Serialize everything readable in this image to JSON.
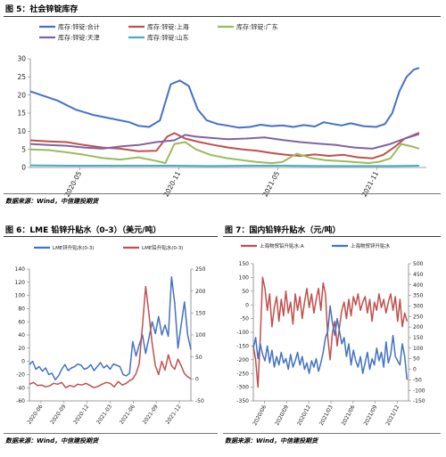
{
  "figures": {
    "fig5_title": "图 5：社会锌锭库存",
    "fig6_title": "图 6：LME 铅锌升贴水（0-3）（美元/吨）",
    "fig7_title": "图 7：国内铅锌升贴水（元/吨）",
    "source_text": "数据来源：Wind，中信建投期货"
  },
  "colors": {
    "blue": "#4472C4",
    "red": "#C0504D",
    "green": "#9BBB59",
    "purple": "#8064A2",
    "cyan": "#4BACC6",
    "axis": "#7f7f7f"
  },
  "chart_data": [
    {
      "id": "fig5",
      "type": "line",
      "title": "图 5：社会锌锭库存",
      "x_tick_labels": [
        "2020-05",
        "2020-11",
        "2021-05",
        "2021-11"
      ],
      "x_range": [
        0,
        22
      ],
      "ylim": [
        0,
        30
      ],
      "y_ticks": [
        0,
        5,
        10,
        15,
        20,
        25,
        30
      ],
      "legend_position": "top",
      "series": [
        {
          "name": "库存:锌锭:合计",
          "color": "#4472C4",
          "x": [
            0,
            0.6,
            1.5,
            2.5,
            3.5,
            4.5,
            5.5,
            6,
            6.6,
            7.2,
            7.8,
            8.3,
            8.8,
            9.3,
            9.8,
            10.4,
            11,
            11.6,
            12.2,
            12.8,
            13.4,
            14,
            14.6,
            15.2,
            15.8,
            16.3,
            16.8,
            17.3,
            17.8,
            18.5,
            19.2,
            19.7,
            20.1,
            20.5,
            20.9,
            21.3,
            21.6
          ],
          "values": [
            21,
            20,
            18.5,
            16,
            14.5,
            13.5,
            12.5,
            11.5,
            11.2,
            13,
            23,
            24,
            22.5,
            16,
            13,
            12,
            11.5,
            11,
            11.2,
            11.8,
            11.4,
            11.6,
            11.2,
            11.7,
            11.3,
            12.5,
            12,
            11.6,
            12.2,
            11.4,
            11.2,
            12,
            15,
            21,
            25,
            27,
            27.5
          ]
        },
        {
          "name": "库存:锌锭:上海",
          "color": "#C0504D",
          "x": [
            0,
            1,
            2,
            3,
            4,
            5,
            6,
            7,
            7.6,
            8,
            8.6,
            9.4,
            10.2,
            11,
            11.8,
            12.6,
            13.4,
            14.2,
            15,
            15.8,
            16.6,
            17.4,
            18.2,
            19,
            19.6,
            20.2,
            20.8,
            21.6
          ],
          "values": [
            7.5,
            7.2,
            7,
            6.2,
            5.5,
            5.2,
            4.5,
            4.6,
            8.5,
            9.5,
            8,
            7,
            6.2,
            5.5,
            5,
            4.6,
            4,
            3.5,
            3.2,
            3.6,
            3.2,
            3.5,
            2.8,
            2.5,
            3.5,
            5.5,
            8,
            9.6
          ]
        },
        {
          "name": "库存:锌锭:广东",
          "color": "#9BBB59",
          "x": [
            0,
            1,
            2,
            3,
            4,
            5,
            6,
            7,
            7.5,
            8,
            8.6,
            9.2,
            10,
            11,
            11.8,
            12.6,
            13.4,
            14,
            14.8,
            15.6,
            16.4,
            17.2,
            18,
            18.8,
            19.4,
            20,
            20.6,
            21.2,
            21.6
          ],
          "values": [
            5,
            4.8,
            4.2,
            3.5,
            2.6,
            2.2,
            2.8,
            1.8,
            1.2,
            6.5,
            7,
            5,
            3.5,
            2.5,
            2,
            1.5,
            1.2,
            1.5,
            3.8,
            2.6,
            2,
            1.8,
            1.5,
            1.2,
            1.6,
            2.5,
            6.5,
            5.8,
            5.2
          ]
        },
        {
          "name": "库存:锌锭:天津",
          "color": "#8064A2",
          "x": [
            0,
            1,
            2,
            3,
            4,
            5,
            6,
            7,
            8,
            8.6,
            9.2,
            10,
            11,
            12,
            13,
            14,
            15,
            16,
            17,
            18,
            19,
            20,
            20.8,
            21.6
          ],
          "values": [
            6.5,
            6.2,
            6,
            5.5,
            5.2,
            5.8,
            6.2,
            7,
            7.5,
            9,
            8.5,
            8.2,
            7.8,
            8,
            8.3,
            7.6,
            7,
            6.6,
            6.2,
            5.5,
            5.2,
            6.5,
            8,
            9.2
          ]
        },
        {
          "name": "库存:锌锭:山东",
          "color": "#4BACC6",
          "x": [
            0,
            2,
            4,
            6,
            8,
            10,
            12,
            14,
            16,
            18,
            20,
            21.6
          ],
          "values": [
            0.6,
            0.5,
            0.5,
            0.5,
            0.5,
            0.4,
            0.5,
            0.5,
            0.4,
            0.4,
            0.4,
            0.5
          ]
        }
      ]
    },
    {
      "id": "fig6",
      "type": "line",
      "title": "图 6：LME 铅锌升贴水（0-3）（美元/吨）",
      "x_tick_labels": [
        "2020-06",
        "2020-09",
        "2020-12",
        "2021-03",
        "2021-06",
        "2021-09",
        "2021-12"
      ],
      "x_range": [
        0,
        20
      ],
      "ylim_left": [
        -60,
        140
      ],
      "y_ticks_left": [
        -60,
        -40,
        -20,
        0,
        20,
        40,
        60,
        80,
        100,
        120,
        140
      ],
      "ylim_right": [
        -50,
        250
      ],
      "y_ticks_right": [
        -50,
        0,
        50,
        100,
        150,
        200,
        250
      ],
      "legend_position": "top",
      "series": [
        {
          "name": "LME锌升贴水(0-3)",
          "color": "#4472C4",
          "axis": "left",
          "x": [
            0,
            0.4,
            0.8,
            1.2,
            1.6,
            2,
            2.4,
            2.8,
            3.2,
            3.6,
            4,
            4.4,
            4.8,
            5.2,
            5.6,
            6,
            6.4,
            6.8,
            7.2,
            7.6,
            8,
            8.4,
            8.8,
            9.2,
            9.6,
            10,
            10.4,
            10.8,
            11.2,
            11.6,
            12,
            12.4,
            12.8,
            13.2,
            13.6,
            14,
            14.4,
            14.8,
            15.2,
            15.6,
            16,
            16.4,
            16.8,
            17.2,
            17.6,
            18,
            18.4,
            18.8,
            19.2,
            19.6,
            20
          ],
          "values": [
            -5,
            0,
            -12,
            -8,
            -15,
            -10,
            -20,
            -18,
            -28,
            -22,
            -12,
            -5,
            -14,
            -10,
            -8,
            -4,
            -6,
            -12,
            -10,
            -5,
            -14,
            -8,
            -2,
            -10,
            -6,
            -12,
            -4,
            -6,
            -8,
            -20,
            -22,
            -18,
            30,
            8,
            25,
            40,
            12,
            35,
            60,
            42,
            68,
            40,
            55,
            38,
            128,
            88,
            20,
            55,
            90,
            40,
            18
          ]
        },
        {
          "name": "LME铅升贴水(0-3)",
          "color": "#C0504D",
          "axis": "right",
          "x": [
            0,
            0.5,
            1,
            1.5,
            2,
            2.5,
            3,
            3.5,
            4,
            4.5,
            5,
            5.5,
            6,
            6.5,
            7,
            7.5,
            8,
            8.5,
            9,
            9.5,
            10,
            10.5,
            11,
            11.5,
            12,
            12.4,
            12.8,
            13.2,
            13.6,
            14,
            14.4,
            14.8,
            15.2,
            15.6,
            16,
            16.4,
            16.8,
            17.2,
            17.6,
            18,
            18.4,
            18.8,
            19.2,
            19.6,
            20
          ],
          "values": [
            -12,
            -8,
            -15,
            -14,
            -18,
            -16,
            -10,
            -12,
            -8,
            -20,
            -15,
            -18,
            -12,
            -14,
            -10,
            -15,
            -20,
            -17,
            -12,
            -8,
            -10,
            -18,
            -6,
            -14,
            -10,
            -4,
            0,
            12,
            35,
            120,
            210,
            150,
            80,
            30,
            10,
            40,
            20,
            55,
            30,
            22,
            45,
            30,
            12,
            5,
            0
          ]
        }
      ]
    },
    {
      "id": "fig7",
      "type": "line",
      "title": "图 7：国内铅锌升贴水（元/吨）",
      "x_tick_labels": [
        "2020/06",
        "2020/09",
        "2020/12",
        "2021/03",
        "2021/06",
        "2021/09",
        "2021/12"
      ],
      "x_range": [
        0,
        20
      ],
      "ylim_left": [
        -350,
        150
      ],
      "y_ticks_left": [
        -350,
        -300,
        -250,
        -200,
        -150,
        -100,
        -50,
        0,
        50,
        100,
        150
      ],
      "ylim_right": [
        -150,
        500
      ],
      "y_ticks_right": [
        -150,
        -100,
        -50,
        0,
        50,
        100,
        150,
        200,
        250,
        300,
        350,
        400,
        450,
        500
      ],
      "legend_position": "top",
      "series": [
        {
          "name": "上海物贸铅升贴水:A",
          "color": "#C0504D",
          "axis": "left",
          "x": [
            0,
            0.3,
            0.6,
            0.9,
            1.2,
            1.5,
            1.8,
            2.1,
            2.4,
            2.7,
            3,
            3.3,
            3.6,
            3.9,
            4.2,
            4.5,
            4.8,
            5.1,
            5.4,
            5.7,
            6,
            6.3,
            6.6,
            6.9,
            7.2,
            7.5,
            7.8,
            8.1,
            8.4,
            8.7,
            9,
            9.3,
            9.6,
            9.9,
            10.2,
            10.5,
            10.8,
            11.1,
            11.4,
            11.7,
            12,
            12.3,
            12.6,
            12.9,
            13.2,
            13.5,
            13.8,
            14.1,
            14.4,
            14.7,
            15,
            15.3,
            15.6,
            15.9,
            16.2,
            16.5,
            16.8,
            17.1,
            17.4,
            17.7,
            18,
            18.3,
            18.6,
            18.9,
            19.2,
            19.5,
            19.8
          ],
          "values": [
            -150,
            -200,
            -300,
            -120,
            100,
            60,
            -20,
            40,
            -80,
            -10,
            30,
            -60,
            20,
            -40,
            50,
            -30,
            10,
            -70,
            40,
            -20,
            30,
            -50,
            10,
            60,
            -10,
            40,
            -30,
            20,
            60,
            -20,
            80,
            40,
            -120,
            -200,
            -100,
            -60,
            -150,
            -80,
            -20,
            10,
            -50,
            20,
            -40,
            30,
            0,
            40,
            -20,
            10,
            30,
            -30,
            20,
            -60,
            10,
            -20,
            40,
            -10,
            20,
            -30,
            10,
            40,
            -20,
            30,
            -60,
            20,
            -80,
            -30,
            -60
          ]
        },
        {
          "name": "上海物贸锌升贴水",
          "color": "#4472C4",
          "axis": "right",
          "x": [
            0,
            0.3,
            0.6,
            0.9,
            1.2,
            1.5,
            1.8,
            2.1,
            2.4,
            2.7,
            3,
            3.3,
            3.6,
            3.9,
            4.2,
            4.5,
            4.8,
            5.1,
            5.4,
            5.7,
            6,
            6.3,
            6.6,
            6.9,
            7.2,
            7.5,
            7.8,
            8.1,
            8.4,
            8.7,
            9,
            9.3,
            9.6,
            9.9,
            10.2,
            10.5,
            10.8,
            11.1,
            11.4,
            11.7,
            12,
            12.3,
            12.6,
            12.9,
            13.2,
            13.5,
            13.8,
            14.1,
            14.4,
            14.7,
            15,
            15.3,
            15.6,
            15.9,
            16.2,
            16.5,
            16.8,
            17.1,
            17.4,
            17.7,
            18,
            18.3,
            18.6,
            18.9,
            19.2,
            19.5,
            19.8
          ],
          "values": [
            100,
            150,
            50,
            120,
            70,
            40,
            110,
            30,
            90,
            10,
            60,
            20,
            80,
            30,
            50,
            0,
            70,
            10,
            40,
            80,
            20,
            60,
            0,
            30,
            -20,
            40,
            10,
            50,
            -10,
            30,
            80,
            150,
            180,
            300,
            220,
            160,
            240,
            180,
            120,
            150,
            60,
            120,
            20,
            90,
            40,
            10,
            60,
            -20,
            30,
            80,
            0,
            50,
            20,
            100,
            40,
            80,
            10,
            130,
            30,
            70,
            160,
            60,
            40,
            20,
            120,
            60,
            -50
          ]
        }
      ]
    }
  ]
}
